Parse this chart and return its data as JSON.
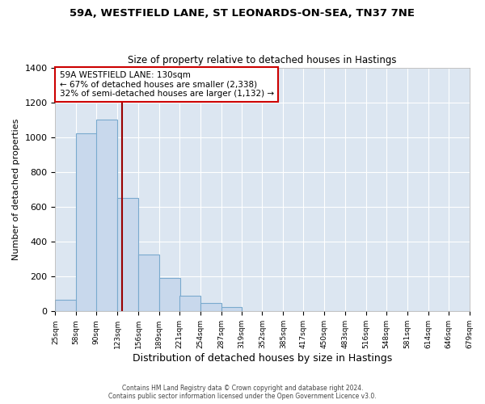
{
  "title1": "59A, WESTFIELD LANE, ST LEONARDS-ON-SEA, TN37 7NE",
  "title2": "Size of property relative to detached houses in Hastings",
  "xlabel": "Distribution of detached houses by size in Hastings",
  "ylabel": "Number of detached properties",
  "bar_color": "#c8d8ec",
  "bar_edge_color": "#7aaace",
  "plot_bg_color": "#dce6f1",
  "figure_bg_color": "#ffffff",
  "grid_color": "#ffffff",
  "bins": [
    25,
    58,
    90,
    123,
    156,
    189,
    221,
    254,
    287,
    319,
    352,
    385,
    417,
    450,
    483,
    516,
    548,
    581,
    614,
    646,
    679
  ],
  "counts": [
    65,
    1020,
    1100,
    650,
    325,
    190,
    90,
    48,
    25,
    0,
    0,
    0,
    0,
    0,
    0,
    0,
    0,
    0,
    0,
    0
  ],
  "marker_x": 130,
  "marker_color": "#990000",
  "annotation_title": "59A WESTFIELD LANE: 130sqm",
  "annotation_line1": "← 67% of detached houses are smaller (2,338)",
  "annotation_line2": "32% of semi-detached houses are larger (1,132) →",
  "annotation_box_color": "#ffffff",
  "annotation_box_edge": "#cc0000",
  "ylim": [
    0,
    1400
  ],
  "xlim_min": 25,
  "xlim_max": 679,
  "footer1": "Contains HM Land Registry data © Crown copyright and database right 2024.",
  "footer2": "Contains public sector information licensed under the Open Government Licence v3.0."
}
